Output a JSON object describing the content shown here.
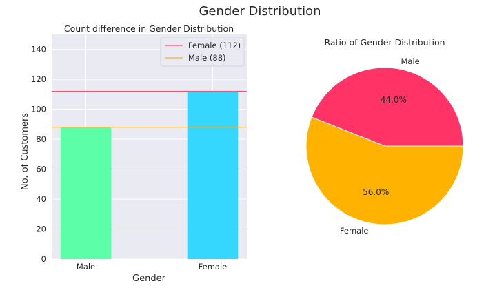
{
  "figure": {
    "suptitle": "Gender Distribution"
  },
  "chart_data": [
    {
      "type": "bar",
      "title": "Count difference in Gender Distribution",
      "xlabel": "Gender",
      "ylabel": "No. of Customers",
      "categories": [
        "Male",
        "Female"
      ],
      "values": [
        88,
        112
      ],
      "bar_colors": [
        "#5cffa8",
        "#36d7ff"
      ],
      "ylim": [
        0,
        150
      ],
      "yticks": [
        0,
        20,
        40,
        60,
        80,
        100,
        120,
        140
      ],
      "grid": true,
      "background": "#eaeaf2",
      "reference_lines": [
        {
          "label": "Female (112)",
          "value": 112,
          "color": "#ff4d6d"
        },
        {
          "label": "Male (88)",
          "value": 88,
          "color": "#ffb21a"
        }
      ],
      "legend_position": "top-right"
    },
    {
      "type": "pie",
      "title": "Ratio of Gender Distribution",
      "slices": [
        {
          "label": "Male",
          "value": 44.0,
          "pct_label": "44.0%",
          "color": "#ff3366"
        },
        {
          "label": "Female",
          "value": 56.0,
          "pct_label": "56.0%",
          "color": "#ffb300"
        }
      ]
    }
  ]
}
